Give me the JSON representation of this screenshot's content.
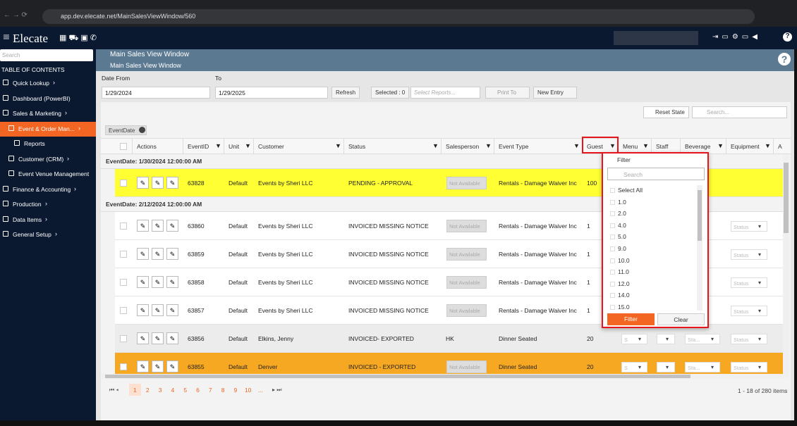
{
  "browser": {
    "url": "app.dev.elecate.net/MainSalesViewWindow/560"
  },
  "app": {
    "logo": "Elecate"
  },
  "sidebar": {
    "search": "Search",
    "toc_title": "TABLE OF CONTENTS",
    "items": [
      "Quick Lookup",
      "Dashboard (PowerBI)",
      "Sales & Marketing",
      "Event & Order Man...",
      "Reports",
      "Customer (CRM)",
      "Event Venue Management",
      "Finance & Accounting",
      "Production",
      "Data Items",
      "General Setup"
    ]
  },
  "header": {
    "title": "Main Sales View Window",
    "subtitle": "Main Sales View Window"
  },
  "filters": {
    "date_from_label": "Date From",
    "date_from": "1/29/2024",
    "to_label": "To",
    "date_to": "1/29/2025",
    "refresh": "Refresh",
    "selected": "Selected : 0",
    "select_reports": "Select Reports...",
    "print_to": "Print To",
    "new_entry": "New Entry"
  },
  "toolbar": {
    "reset_state": "Reset State",
    "search": "Search...",
    "group_chip": "EventDate"
  },
  "columns": [
    "Actions",
    "EventID",
    "Unit",
    "Customer",
    "Status",
    "Salesperson",
    "Event Type",
    "Guest",
    "Menu",
    "Staff",
    "Beverage",
    "Equipment",
    "Ac"
  ],
  "groups": [
    {
      "label": "EventDate: 1/30/2024 12:00:00 AM",
      "rows": [
        {
          "event_id": "63828",
          "unit": "Default",
          "customer": "Events by Sheri LLC",
          "status": "PENDING - APPROVAL",
          "salesperson": "Not Available",
          "event_type": "Rentals - Damage Waiver Inc",
          "guest": "100",
          "color": "#ffff33"
        }
      ]
    },
    {
      "label": "EventDate: 2/12/2024 12:00:00 AM",
      "rows": [
        {
          "event_id": "63860",
          "unit": "Default",
          "customer": "Events by Sheri LLC",
          "status": "INVOICED MISSING NOTICE",
          "salesperson": "Not Available",
          "event_type": "Rentals - Damage Waiver Inc",
          "guest": "1",
          "equipment": "Status",
          "color": "#ffffff"
        },
        {
          "event_id": "63859",
          "unit": "Default",
          "customer": "Events by Sheri LLC",
          "status": "INVOICED MISSING NOTICE",
          "salesperson": "Not Available",
          "event_type": "Rentals - Damage Waiver Inc",
          "guest": "1",
          "equipment": "Status",
          "color": "#ffffff"
        },
        {
          "event_id": "63858",
          "unit": "Default",
          "customer": "Events by Sheri LLC",
          "status": "INVOICED MISSING NOTICE",
          "salesperson": "Not Available",
          "event_type": "Rentals - Damage Waiver Inc",
          "guest": "1",
          "equipment": "Status",
          "color": "#ffffff"
        },
        {
          "event_id": "63857",
          "unit": "Default",
          "customer": "Events by Sheri LLC",
          "status": "INVOICED MISSING NOTICE",
          "salesperson": "Not Available",
          "event_type": "Rentals - Damage Waiver Inc",
          "guest": "1",
          "equipment": "Status",
          "color": "#ffffff"
        },
        {
          "event_id": "63856",
          "unit": "Default",
          "customer": "Elkins, Jenny",
          "status": "INVOICED- EXPORTED",
          "salesperson": "HK",
          "event_type": "Dinner Seated",
          "guest": "20",
          "menu": "S",
          "beverage": "Sta...",
          "equipment": "Status",
          "color": "#ececec"
        },
        {
          "event_id": "63855",
          "unit": "Default",
          "customer": "Denver",
          "status": "INVOICED - EXPORTED",
          "salesperson": "Not Available",
          "event_type": "Dinner Seated",
          "guest": "20",
          "menu": "S",
          "beverage": "Sta...",
          "equipment": "Status",
          "color": "#f7a823"
        }
      ]
    }
  ],
  "filter_popup": {
    "title": "Filter",
    "search": "Search",
    "options": [
      "Select All",
      "1.0",
      "2.0",
      "4.0",
      "5.0",
      "9.0",
      "10.0",
      "11.0",
      "12.0",
      "14.0",
      "15.0"
    ],
    "filter_button": "Filter",
    "clear_button": "Clear"
  },
  "pager": {
    "pages": [
      "1",
      "2",
      "3",
      "4",
      "5",
      "6",
      "7",
      "8",
      "9",
      "10",
      "..."
    ],
    "summary": "1 - 18 of 280 items"
  }
}
